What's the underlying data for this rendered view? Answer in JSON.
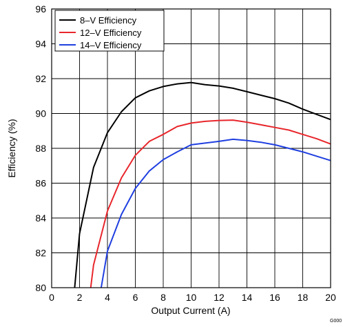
{
  "chart_data": {
    "type": "line",
    "xlabel": "Output Current (A)",
    "ylabel": "Efficiency (%)",
    "xlim": [
      0,
      20
    ],
    "ylim": [
      80,
      96
    ],
    "xticks": [
      0,
      2,
      4,
      6,
      8,
      10,
      12,
      14,
      16,
      18,
      20
    ],
    "yticks": [
      80,
      82,
      84,
      86,
      88,
      90,
      92,
      94,
      96
    ],
    "grid": true,
    "legend_position": "top-left",
    "figure_code": "G000",
    "series": [
      {
        "name": "8–V Efficiency",
        "color": "#000000",
        "x": [
          1.65,
          2.0,
          3.0,
          4.0,
          5.0,
          6.0,
          7.0,
          8.0,
          9.0,
          10.0,
          11.0,
          12.0,
          13.0,
          14.0,
          15.0,
          16.0,
          17.0,
          18.0,
          19.0,
          20.0
        ],
        "y": [
          80.0,
          83.1,
          86.9,
          88.9,
          90.1,
          90.9,
          91.3,
          91.55,
          91.7,
          91.78,
          91.65,
          91.58,
          91.45,
          91.25,
          91.05,
          90.85,
          90.6,
          90.25,
          89.95,
          89.65
        ]
      },
      {
        "name": "12–V Efficiency",
        "color": "#e8262b",
        "x": [
          2.8,
          3.0,
          4.0,
          5.0,
          6.0,
          7.0,
          8.0,
          9.0,
          10.0,
          11.0,
          12.0,
          13.0,
          14.0,
          15.0,
          16.0,
          17.0,
          18.0,
          19.0,
          20.0
        ],
        "y": [
          80.0,
          81.3,
          84.4,
          86.3,
          87.6,
          88.4,
          88.8,
          89.25,
          89.45,
          89.55,
          89.6,
          89.62,
          89.5,
          89.35,
          89.2,
          89.05,
          88.8,
          88.55,
          88.25
        ]
      },
      {
        "name": "14–V Efficiency",
        "color": "#1f3fe0",
        "x": [
          3.55,
          4.0,
          5.0,
          6.0,
          7.0,
          8.0,
          9.0,
          10.0,
          11.0,
          12.0,
          13.0,
          14.0,
          15.0,
          16.0,
          17.0,
          18.0,
          19.0,
          20.0
        ],
        "y": [
          80.0,
          82.1,
          84.2,
          85.7,
          86.7,
          87.35,
          87.8,
          88.2,
          88.3,
          88.4,
          88.52,
          88.45,
          88.35,
          88.2,
          88.0,
          87.8,
          87.55,
          87.3
        ]
      }
    ]
  }
}
